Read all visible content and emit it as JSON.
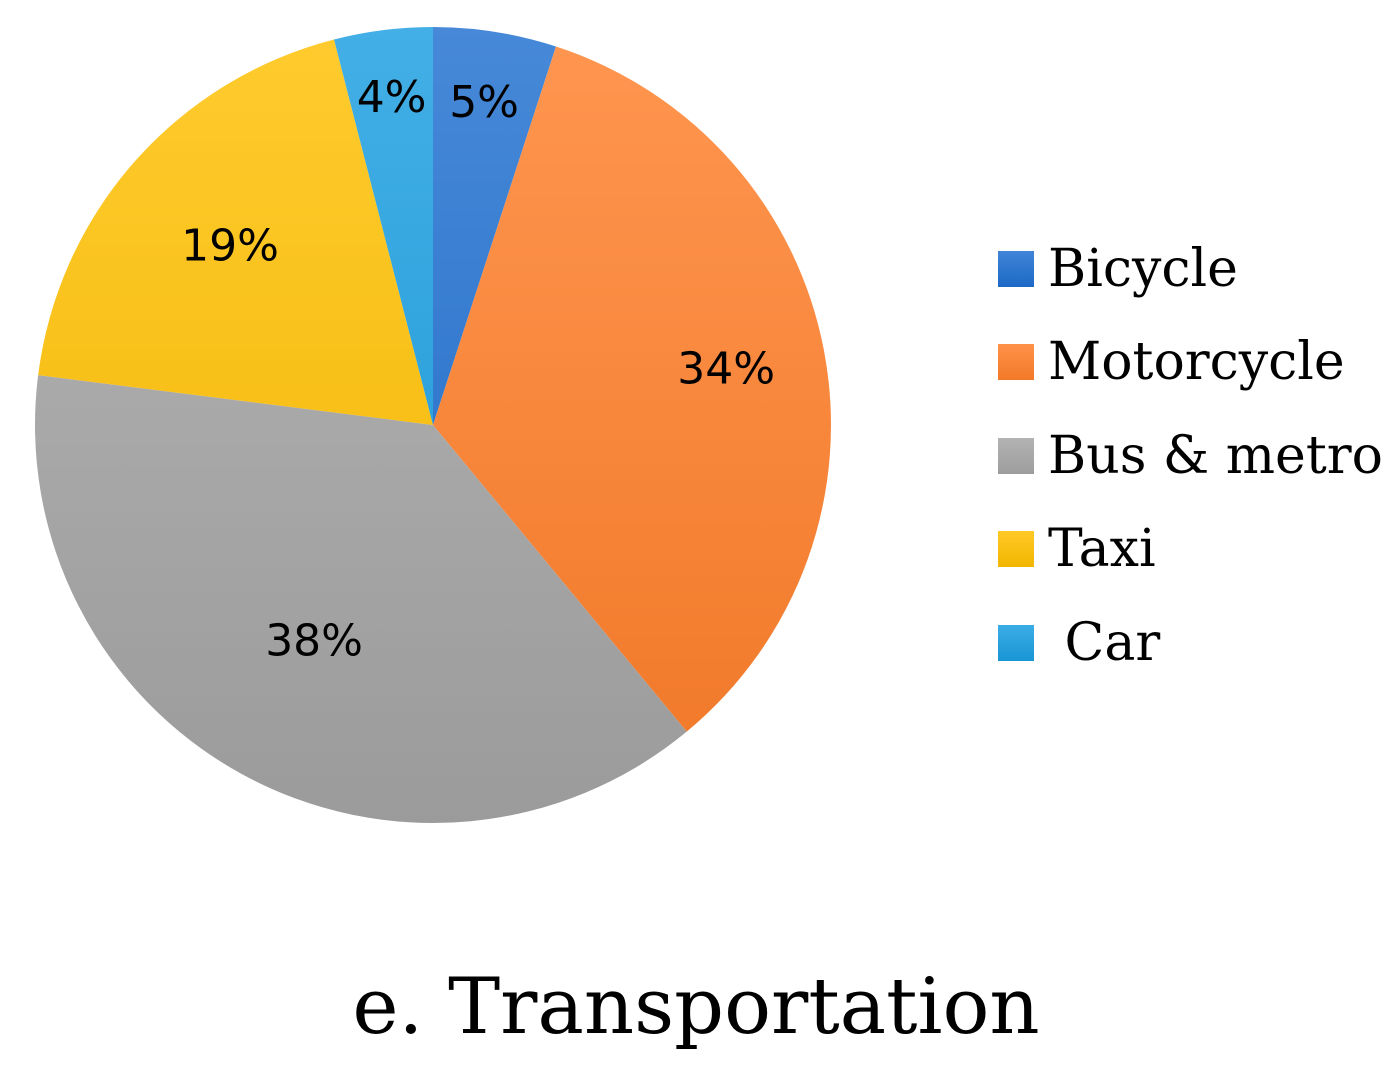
{
  "chart_data": {
    "type": "pie",
    "title": "e. Transportation",
    "categories": [
      "Bicycle",
      "Motorcycle",
      "Bus & metro",
      "Taxi",
      " Car"
    ],
    "values": [
      5,
      34,
      38,
      19,
      4
    ],
    "value_labels": [
      "5%",
      "34%",
      "38%",
      "19%",
      "4%"
    ],
    "unit": "%",
    "start_angle": "12 o'clock",
    "direction": "clockwise",
    "legend_position": "right",
    "colors": [
      "#1f6fd0",
      "#ff7f2a",
      "#a5a5a5",
      "#ffc000",
      "#1a9ee0"
    ]
  }
}
